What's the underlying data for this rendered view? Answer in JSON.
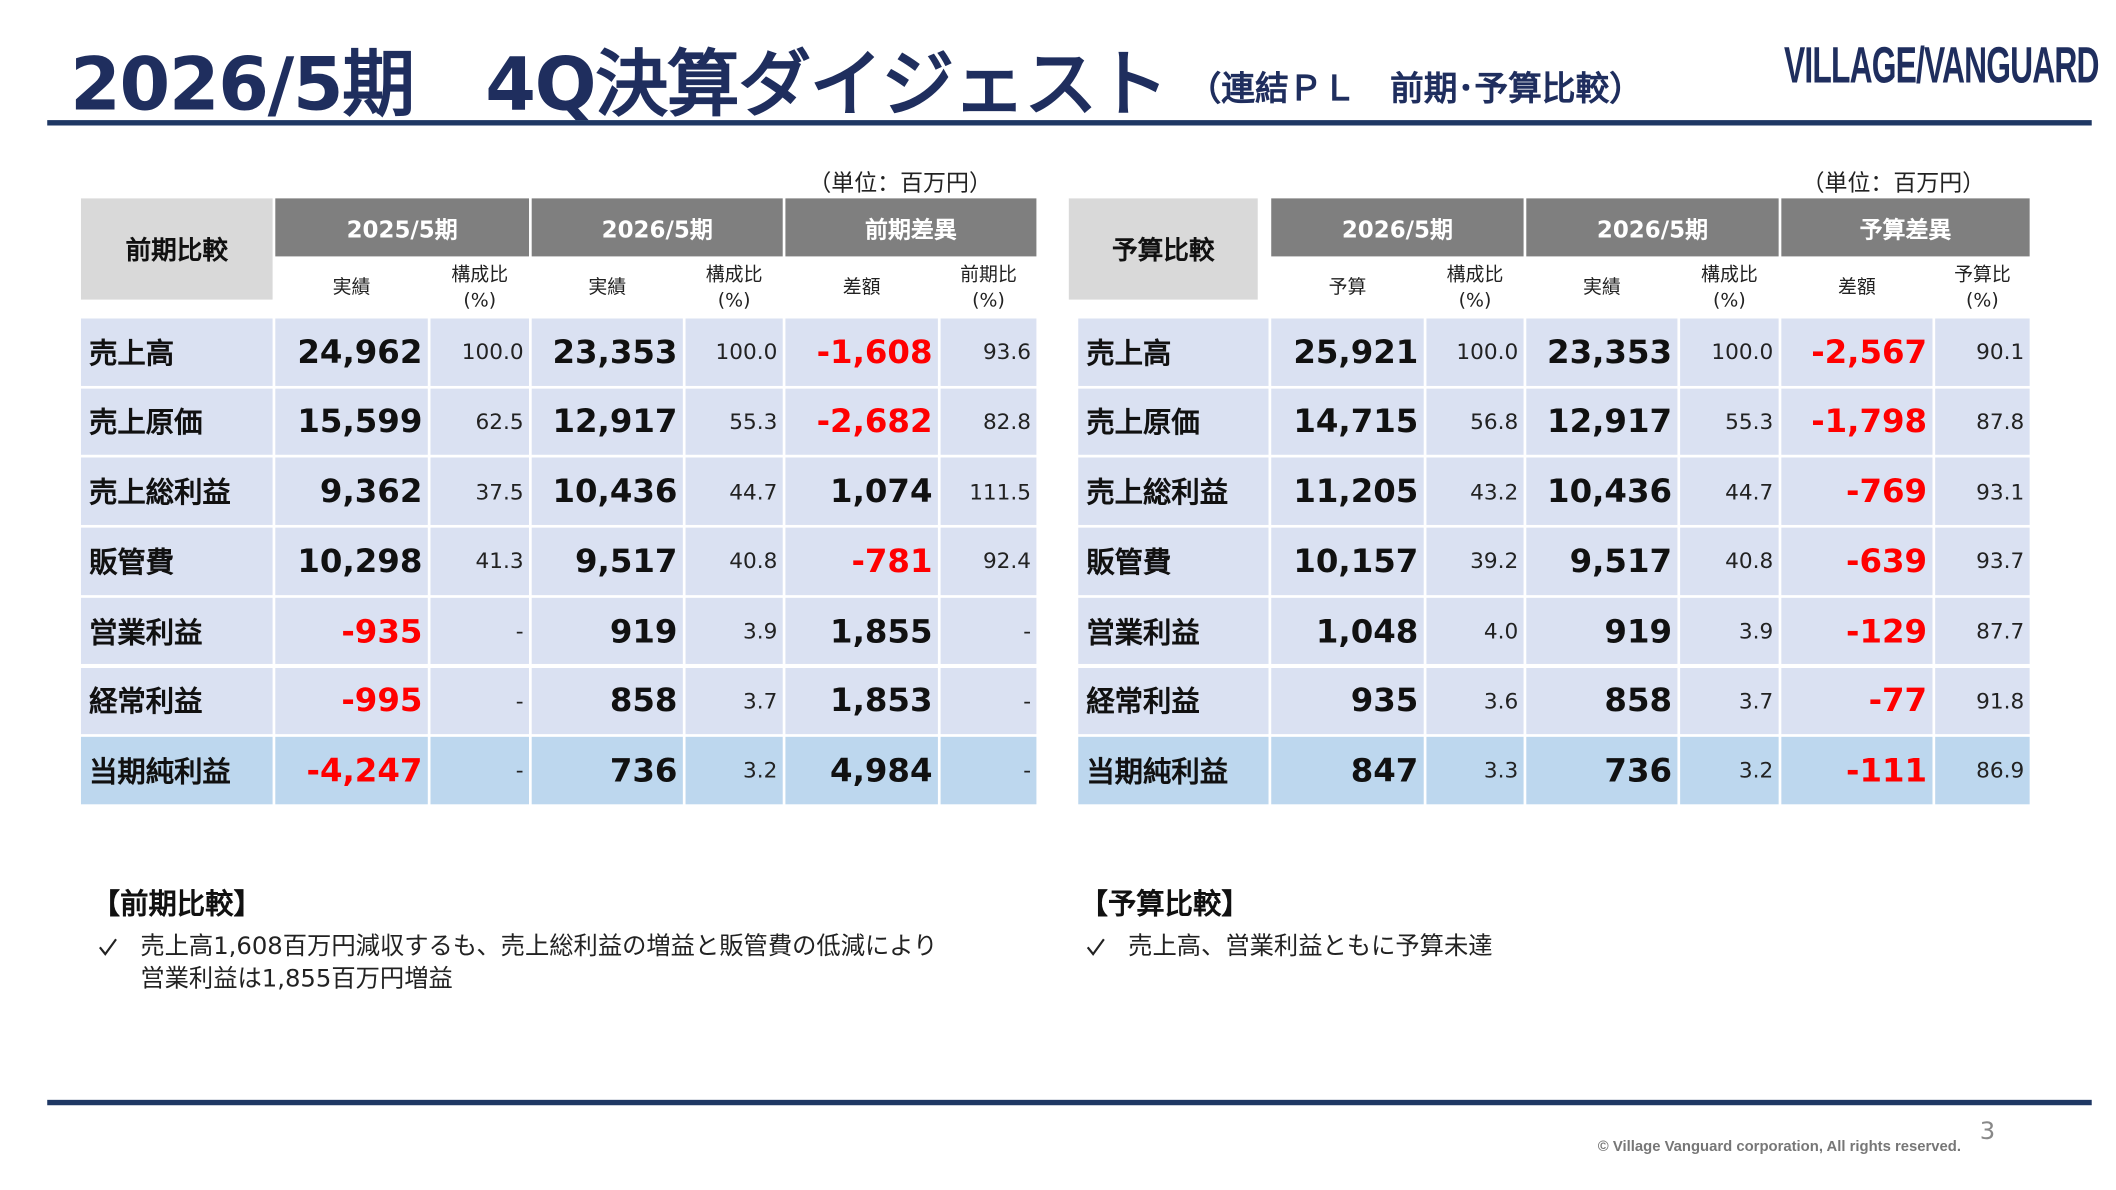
{
  "header": {
    "title": "2026/5期　4Q決算ダイジェスト",
    "subtitle": "（連結ＰＬ　前期･予算比較）",
    "logo": "VILLAGE/VANGUARD"
  },
  "tables": [
    {
      "unit": "（単位：百万円）",
      "corner": "前期比較",
      "groups": [
        "2025/5期",
        "2026/5期",
        "前期差異"
      ],
      "subheaders": [
        "実績",
        "構成比\n(%)",
        "実績",
        "構成比\n(%)",
        "差額",
        "前期比\n(%)"
      ],
      "rows": [
        [
          "売上高",
          "24,962",
          "100.0",
          "23,353",
          "100.0",
          "-1,608",
          "93.6"
        ],
        [
          "売上原価",
          "15,599",
          "62.5",
          "12,917",
          "55.3",
          "-2,682",
          "82.8"
        ],
        [
          "売上総利益",
          "9,362",
          "37.5",
          "10,436",
          "44.7",
          "1,074",
          "111.5"
        ],
        [
          "販管費",
          "10,298",
          "41.3",
          "9,517",
          "40.8",
          "-781",
          "92.4"
        ],
        [
          "営業利益",
          "-935",
          "-",
          "919",
          "3.9",
          "1,855",
          "-"
        ],
        [
          "経常利益",
          "-995",
          "-",
          "858",
          "3.7",
          "1,853",
          "-"
        ],
        [
          "当期純利益",
          "-4,247",
          "-",
          "736",
          "3.2",
          "4,984",
          "-"
        ]
      ]
    },
    {
      "unit": "（単位：百万円）",
      "corner": "予算比較",
      "groups": [
        "2026/5期",
        "2026/5期",
        "予算差異"
      ],
      "subheaders": [
        "予算",
        "構成比\n(%)",
        "実績",
        "構成比\n(%)",
        "差額",
        "予算比\n(%)"
      ],
      "rows": [
        [
          "売上高",
          "25,921",
          "100.0",
          "23,353",
          "100.0",
          "-2,567",
          "90.1"
        ],
        [
          "売上原価",
          "14,715",
          "56.8",
          "12,917",
          "55.3",
          "-1,798",
          "87.8"
        ],
        [
          "売上総利益",
          "11,205",
          "43.2",
          "10,436",
          "44.7",
          "-769",
          "93.1"
        ],
        [
          "販管費",
          "10,157",
          "39.2",
          "9,517",
          "40.8",
          "-639",
          "93.7"
        ],
        [
          "営業利益",
          "1,048",
          "4.0",
          "919",
          "3.9",
          "-129",
          "87.7"
        ],
        [
          "経常利益",
          "935",
          "3.6",
          "858",
          "3.7",
          "-77",
          "91.8"
        ],
        [
          "当期純利益",
          "847",
          "3.3",
          "736",
          "3.2",
          "-111",
          "86.9"
        ]
      ]
    }
  ],
  "notes": [
    {
      "heading": "【前期比較】",
      "items": [
        [
          "売上高1,608百万円減収するも、売上総利益の増益と販管費の低減により",
          "営業利益は1,855百万円増益"
        ]
      ]
    },
    {
      "heading": "【予算比較】",
      "items": [
        [
          "売上高、営業利益ともに予算未達"
        ]
      ]
    }
  ],
  "footer": {
    "copyright": "© Village Vanguard corporation, All rights reserved.",
    "page": "3"
  }
}
